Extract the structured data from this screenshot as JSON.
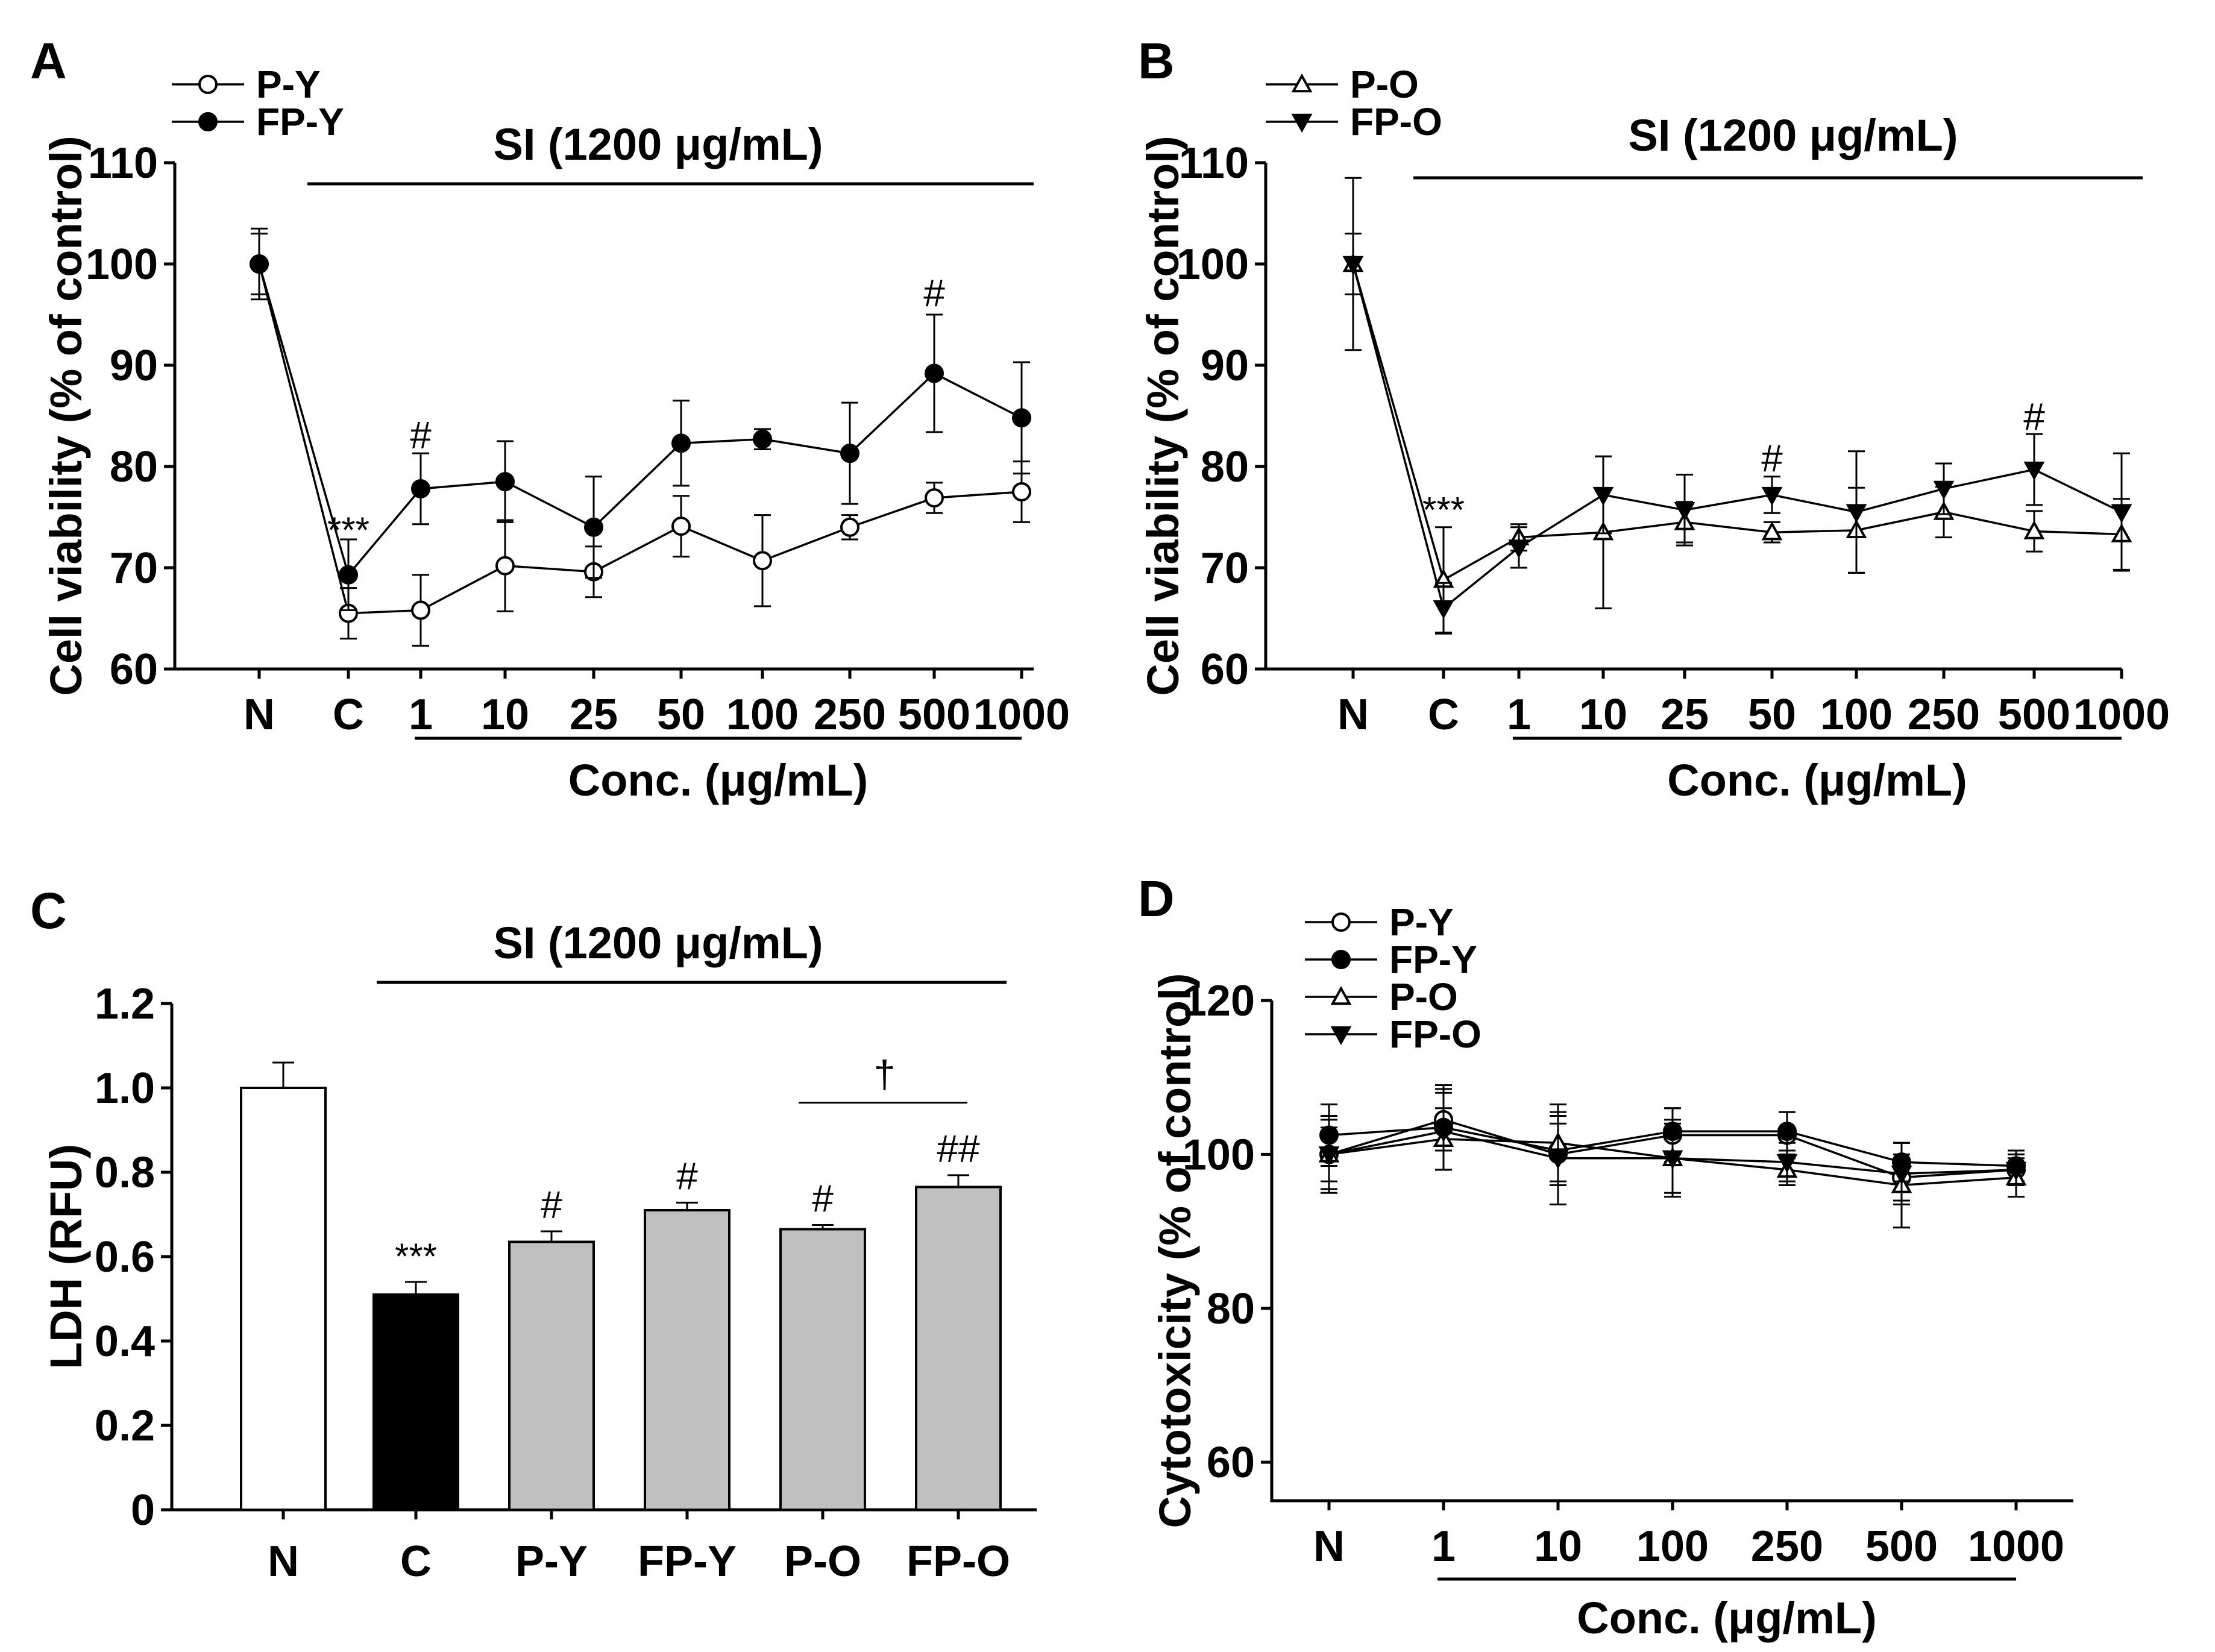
{
  "chart_data": [
    {
      "panel": "A",
      "type": "line",
      "ylabel": "Cell viability (% of control)",
      "xlabel": "Conc. (μg/mL)",
      "ylim": [
        60,
        110
      ],
      "yticks": [
        60,
        70,
        80,
        90,
        100,
        110
      ],
      "categories": [
        "N",
        "C",
        "1",
        "10",
        "25",
        "50",
        "100",
        "250",
        "500",
        "1000"
      ],
      "treatment_label": "SI (1200 μg/mL)",
      "series": [
        {
          "name": "P-Y",
          "marker": "circle-open",
          "values": [
            100,
            65.5,
            65.8,
            70.2,
            69.6,
            74.1,
            70.7,
            74.0,
            76.9,
            77.5
          ],
          "errors": [
            3.0,
            2.5,
            3.5,
            4.5,
            2.5,
            3.0,
            4.5,
            1.2,
            1.5,
            3.0
          ]
        },
        {
          "name": "FP-Y",
          "marker": "circle-filled",
          "values": [
            100,
            69.3,
            77.8,
            78.5,
            74.0,
            82.3,
            82.7,
            81.3,
            89.2,
            84.8
          ],
          "errors": [
            3.5,
            3.5,
            3.5,
            4.0,
            5.0,
            4.2,
            1.0,
            5.0,
            5.8,
            5.5
          ]
        }
      ],
      "annotations": [
        {
          "text": "***",
          "category": "C",
          "value": 72.5
        },
        {
          "text": "#",
          "category": "1",
          "value": 81.8
        },
        {
          "text": "#",
          "category": "500",
          "value": 95.8
        }
      ]
    },
    {
      "panel": "B",
      "type": "line",
      "ylabel": "Cell viability (% of control)",
      "xlabel": "Conc. (μg/mL)",
      "ylim": [
        60,
        110
      ],
      "yticks": [
        60,
        70,
        80,
        90,
        100,
        110
      ],
      "categories": [
        "N",
        "C",
        "1",
        "10",
        "25",
        "50",
        "100",
        "250",
        "500",
        "1000"
      ],
      "treatment_label": "SI (1200 μg/mL)",
      "series": [
        {
          "name": "P-O",
          "marker": "triangle-up-open",
          "values": [
            100,
            68.8,
            73.0,
            73.5,
            74.5,
            73.5,
            73.7,
            75.5,
            73.6,
            73.3
          ],
          "errors": [
            8.5,
            5.2,
            1.3,
            7.5,
            2.0,
            1.0,
            4.2,
            2.5,
            2.0,
            3.5
          ]
        },
        {
          "name": "FP-O",
          "marker": "triangle-down-filled",
          "values": [
            100,
            66.0,
            72.0,
            77.2,
            75.7,
            77.2,
            75.5,
            77.8,
            79.7,
            75.5
          ],
          "errors": [
            3.0,
            2.5,
            2.0,
            3.8,
            3.5,
            1.8,
            6.0,
            2.5,
            3.5,
            5.8
          ]
        }
      ],
      "annotations": [
        {
          "text": "***",
          "category": "C",
          "value": 74.5
        },
        {
          "text": "#",
          "category": "50",
          "value": 79.5
        },
        {
          "text": "#",
          "category": "500",
          "value": 83.6
        }
      ]
    },
    {
      "panel": "C",
      "type": "bar",
      "ylabel": "LDH (RFU)",
      "ylim": [
        0,
        1.2
      ],
      "yticks": [
        "0",
        "0.2",
        "0.4",
        "0.6",
        "0.8",
        "1.0",
        "1.2"
      ],
      "categories": [
        "N",
        "C",
        "P-Y",
        "FP-Y",
        "P-O",
        "FP-O"
      ],
      "values": [
        1.0,
        0.51,
        0.635,
        0.71,
        0.665,
        0.765
      ],
      "errors": [
        0.06,
        0.03,
        0.025,
        0.018,
        0.01,
        0.028
      ],
      "colors": [
        "#ffffff",
        "#000000",
        "#c0c0c0",
        "#c0c0c0",
        "#c0c0c0",
        "#c0c0c0"
      ],
      "treatment_label": "SI (1200 μg/mL)",
      "annotations": [
        {
          "text": "***",
          "category": "C"
        },
        {
          "text": "#",
          "category": "P-Y"
        },
        {
          "text": "#",
          "category": "FP-Y"
        },
        {
          "text": "#",
          "category": "P-O"
        },
        {
          "text": "##",
          "category": "FP-O"
        }
      ],
      "bracket": {
        "from": "P-O",
        "to": "FP-O",
        "text": "†"
      }
    },
    {
      "panel": "D",
      "type": "line",
      "ylabel": "Cytotoxicity (% of control)",
      "xlabel": "Conc. (μg/mL)",
      "ylim": [
        55,
        120
      ],
      "yticks": [
        60,
        80,
        100,
        120
      ],
      "categories": [
        "N",
        "1",
        "10",
        "100",
        "250",
        "500",
        "1000"
      ],
      "series": [
        {
          "name": "P-Y",
          "marker": "circle-open",
          "values": [
            100,
            104.5,
            100,
            102.5,
            102.5,
            97.0,
            98.0
          ],
          "errors": [
            3.5,
            4.0,
            4.0,
            3.5,
            3.0,
            3.0,
            2.0
          ]
        },
        {
          "name": "FP-Y",
          "marker": "circle-filled",
          "values": [
            102.5,
            103.5,
            100.5,
            103.0,
            103.0,
            99.0,
            98.5
          ],
          "errors": [
            4.0,
            5.5,
            4.5,
            3.0,
            2.5,
            2.5,
            2.0
          ]
        },
        {
          "name": "P-O",
          "marker": "triangle-up-open",
          "values": [
            100,
            102.0,
            101.5,
            99.5,
            98.0,
            96.0,
            97.0
          ],
          "errors": [
            5.0,
            4.0,
            5.0,
            5.0,
            2.0,
            5.5,
            2.5
          ]
        },
        {
          "name": "FP-O",
          "marker": "triangle-down-filled",
          "values": [
            100,
            103.0,
            99.5,
            99.5,
            99.0,
            97.5,
            98.0
          ],
          "errors": [
            4.5,
            5.0,
            6.0,
            4.5,
            2.5,
            4.0,
            2.0
          ]
        }
      ]
    }
  ]
}
